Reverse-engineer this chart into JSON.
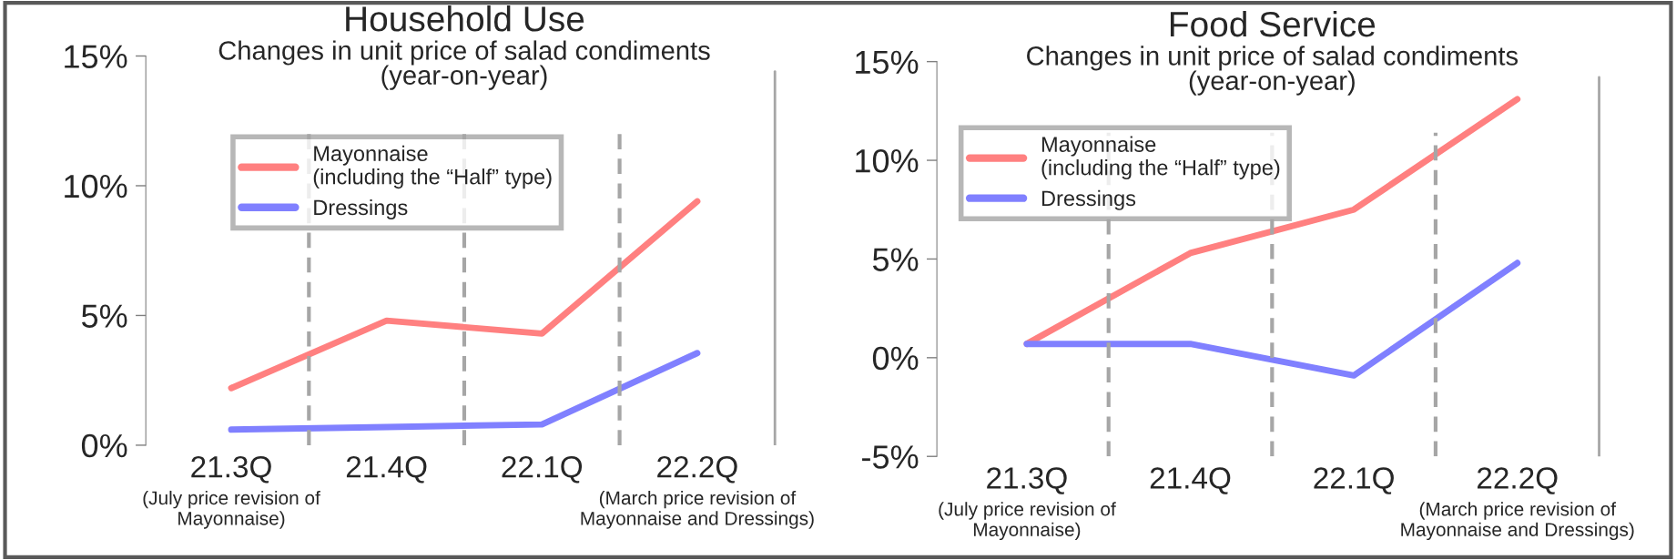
{
  "chart_data": [
    {
      "type": "line",
      "title": "Household Use",
      "subtitle": "Changes in unit price of salad condiments\n(year-on-year)",
      "categories": [
        "21.3Q",
        "21.4Q",
        "22.1Q",
        "22.2Q"
      ],
      "series": [
        {
          "name": "Mayonnaise\n(including the “Half” type)",
          "color": "#ff8080",
          "values": [
            2.2,
            4.8,
            4.3,
            9.4
          ]
        },
        {
          "name": "Dressings",
          "color": "#8080ff",
          "values": [
            0.6,
            0.7,
            0.8,
            3.55
          ]
        }
      ],
      "ylim": [
        0,
        15
      ],
      "yticks": [
        {
          "value": 0,
          "label": "0%"
        },
        {
          "value": 5,
          "label": "5%"
        },
        {
          "value": 10,
          "label": "10%"
        },
        {
          "value": 15,
          "label": "15%"
        }
      ],
      "annotations": [
        "(July price revision of\nMayonnaise)",
        "(March price revision of\nMayonnaise and Dressings)"
      ],
      "legend": "top left",
      "grid": false,
      "marker": "none",
      "line_style": "solid"
    },
    {
      "type": "line",
      "title": "Food Service",
      "subtitle": "Changes in unit price of salad condiments\n(year-on-year)",
      "categories": [
        "21.3Q",
        "21.4Q",
        "22.1Q",
        "22.2Q"
      ],
      "series": [
        {
          "name": "Mayonnaise\n(including the “Half” type)",
          "color": "#ff8080",
          "values": [
            0.7,
            5.3,
            7.5,
            13.1
          ]
        },
        {
          "name": "Dressings",
          "color": "#8080ff",
          "values": [
            0.7,
            0.7,
            -0.9,
            4.8
          ]
        }
      ],
      "ylim": [
        -5,
        15
      ],
      "yticks": [
        {
          "value": -5,
          "label": "-5%"
        },
        {
          "value": 0,
          "label": "0%"
        },
        {
          "value": 5,
          "label": "5%"
        },
        {
          "value": 10,
          "label": "10%"
        },
        {
          "value": 15,
          "label": "15%"
        }
      ],
      "annotations": [
        "(July price revision of\nMayonnaise)",
        "(March price revision of\nMayonnaise and Dressings)"
      ],
      "legend": "top left",
      "grid": false,
      "marker": "none",
      "line_style": "solid"
    }
  ]
}
